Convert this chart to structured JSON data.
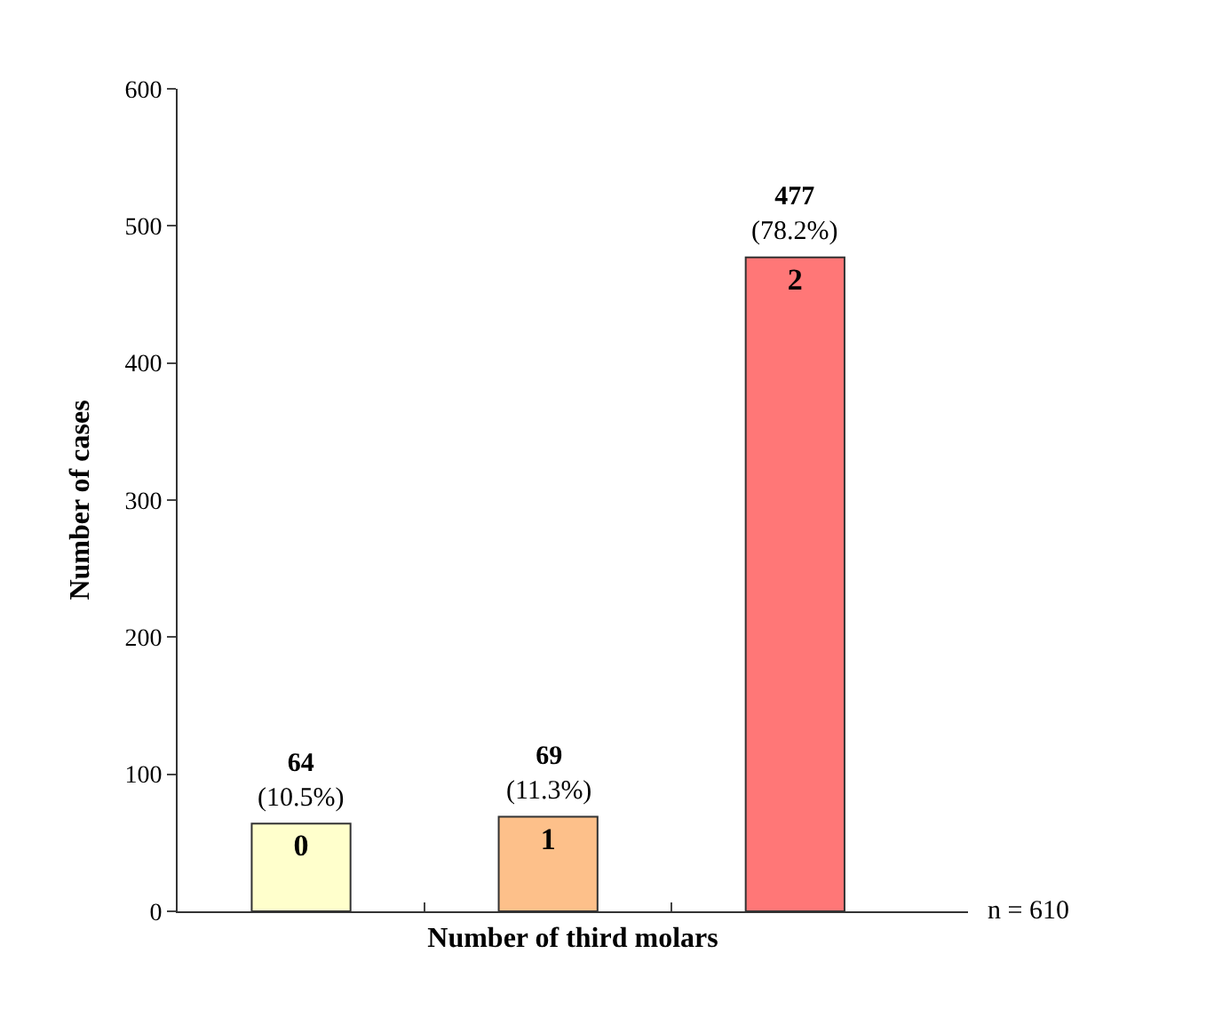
{
  "chart_data": {
    "type": "bar",
    "xlabel": "Number of third molars",
    "ylabel": "Number of cases",
    "categories": [
      "0",
      "1",
      "2"
    ],
    "values": [
      64,
      69,
      477
    ],
    "colors": [
      "#ffffcc",
      "#fdc08a",
      "#ff7777"
    ],
    "value_labels": [
      "64\n(10.5%)",
      "69\n(11.3%)",
      "477\n(78.2%)"
    ],
    "ylim": [
      0,
      600
    ],
    "yticks": [
      0,
      100,
      200,
      300,
      400,
      500,
      600
    ],
    "annotations": [
      "n = 610"
    ]
  }
}
